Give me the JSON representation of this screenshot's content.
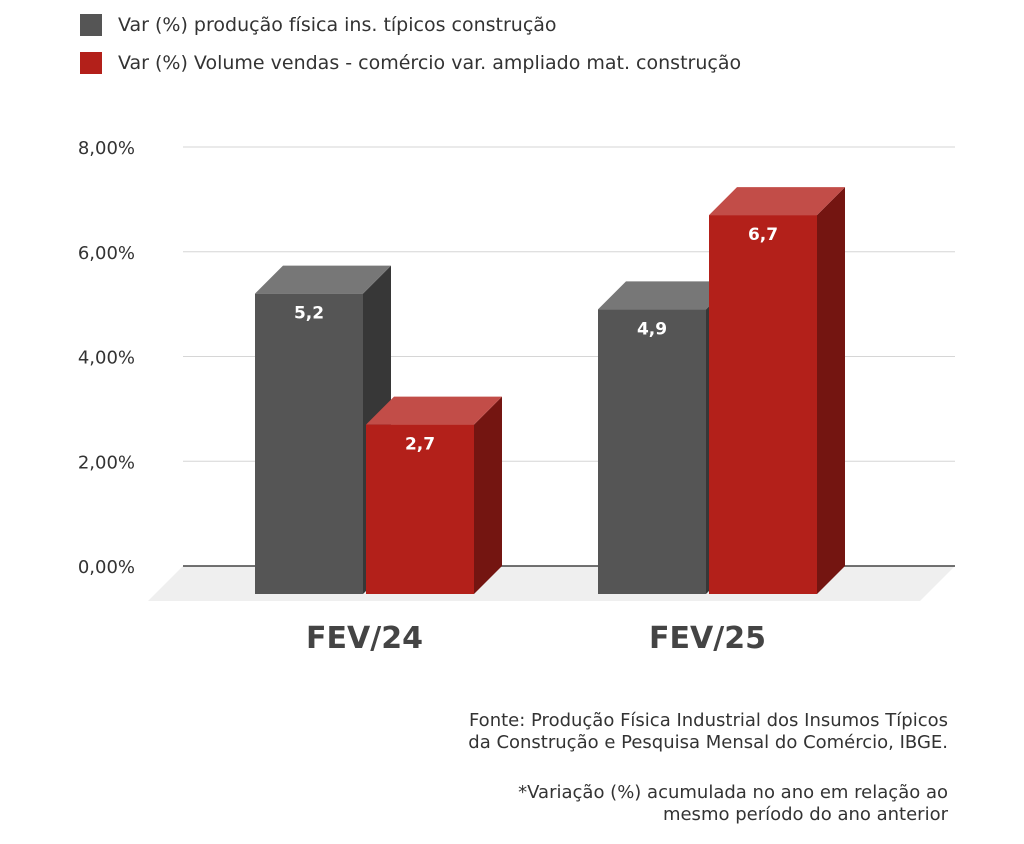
{
  "legend": {
    "items": [
      {
        "label": "Var (%) produção física ins. típicos construção",
        "color": "#555555"
      },
      {
        "label": "Var (%) Volume vendas - comércio var. ampliado mat. construção",
        "color": "#b3201a"
      }
    ]
  },
  "chart_data": {
    "type": "bar",
    "categories": [
      "FEV/24",
      "FEV/25"
    ],
    "series": [
      {
        "name": "Var (%) produção física ins. típicos construção",
        "values": [
          5.2,
          4.9
        ],
        "labels": [
          "5,2",
          "4,9"
        ],
        "color": "#555555"
      },
      {
        "name": "Var (%) Volume vendas - comércio var. ampliado mat. construção",
        "values": [
          2.7,
          6.7
        ],
        "labels": [
          "2,7",
          "6,7"
        ],
        "color": "#b3201a"
      }
    ],
    "yticks": [
      "0,00%",
      "2,00%",
      "4,00%",
      "6,00%",
      "8,00%"
    ],
    "ylim": [
      0,
      8
    ],
    "grid": true,
    "legend_position": "top-left",
    "style": "3d-columns"
  },
  "footer": {
    "source_line1": "Fonte: Produção Física Industrial dos Insumos Típicos",
    "source_line2": "da Construção e Pesquisa Mensal do Comércio, IBGE.",
    "note_line1": "*Variação (%) acumulada no ano em relação ao",
    "note_line2": "mesmo período do ano anterior"
  }
}
